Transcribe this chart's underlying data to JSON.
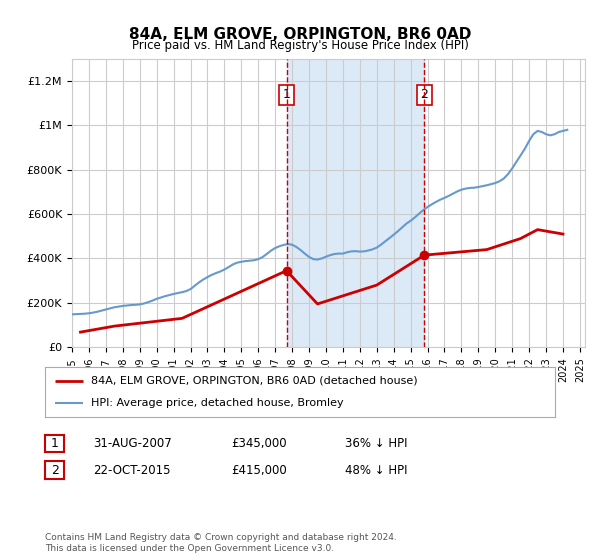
{
  "title": "84A, ELM GROVE, ORPINGTON, BR6 0AD",
  "subtitle": "Price paid vs. HM Land Registry's House Price Index (HPI)",
  "ylim": [
    0,
    1300000
  ],
  "yticks": [
    0,
    200000,
    400000,
    600000,
    800000,
    1000000,
    1200000
  ],
  "ytick_labels": [
    "£0",
    "£200K",
    "£400K",
    "£600K",
    "£800K",
    "£1M",
    "£1.2M"
  ],
  "bg_color": "#ffffff",
  "plot_bg_color": "#ffffff",
  "shaded_region_color": "#dce9f7",
  "grid_color": "#cccccc",
  "marker1": {
    "date_index": 2007.67,
    "value": 345000,
    "label": "1",
    "color": "#cc0000"
  },
  "marker2": {
    "date_index": 2015.81,
    "value": 415000,
    "label": "2",
    "color": "#cc0000"
  },
  "legend_entries": [
    {
      "label": "84A, ELM GROVE, ORPINGTON, BR6 0AD (detached house)",
      "color": "#cc0000",
      "lw": 2
    },
    {
      "label": "HPI: Average price, detached house, Bromley",
      "color": "#6699cc",
      "lw": 1.5
    }
  ],
  "table_rows": [
    {
      "num": "1",
      "date": "31-AUG-2007",
      "price": "£345,000",
      "info": "36% ↓ HPI"
    },
    {
      "num": "2",
      "date": "22-OCT-2015",
      "price": "£415,000",
      "info": "48% ↓ HPI"
    }
  ],
  "footnote": "Contains HM Land Registry data © Crown copyright and database right 2024.\nThis data is licensed under the Open Government Licence v3.0.",
  "hpi_years": [
    1995.0,
    1995.25,
    1995.5,
    1995.75,
    1996.0,
    1996.25,
    1996.5,
    1996.75,
    1997.0,
    1997.25,
    1997.5,
    1997.75,
    1998.0,
    1998.25,
    1998.5,
    1998.75,
    1999.0,
    1999.25,
    1999.5,
    1999.75,
    2000.0,
    2000.25,
    2000.5,
    2000.75,
    2001.0,
    2001.25,
    2001.5,
    2001.75,
    2002.0,
    2002.25,
    2002.5,
    2002.75,
    2003.0,
    2003.25,
    2003.5,
    2003.75,
    2004.0,
    2004.25,
    2004.5,
    2004.75,
    2005.0,
    2005.25,
    2005.5,
    2005.75,
    2006.0,
    2006.25,
    2006.5,
    2006.75,
    2007.0,
    2007.25,
    2007.5,
    2007.75,
    2008.0,
    2008.25,
    2008.5,
    2008.75,
    2009.0,
    2009.25,
    2009.5,
    2009.75,
    2010.0,
    2010.25,
    2010.5,
    2010.75,
    2011.0,
    2011.25,
    2011.5,
    2011.75,
    2012.0,
    2012.25,
    2012.5,
    2012.75,
    2013.0,
    2013.25,
    2013.5,
    2013.75,
    2014.0,
    2014.25,
    2014.5,
    2014.75,
    2015.0,
    2015.25,
    2015.5,
    2015.75,
    2016.0,
    2016.25,
    2016.5,
    2016.75,
    2017.0,
    2017.25,
    2017.5,
    2017.75,
    2018.0,
    2018.25,
    2018.5,
    2018.75,
    2019.0,
    2019.25,
    2019.5,
    2019.75,
    2020.0,
    2020.25,
    2020.5,
    2020.75,
    2021.0,
    2021.25,
    2021.5,
    2021.75,
    2022.0,
    2022.25,
    2022.5,
    2022.75,
    2023.0,
    2023.25,
    2023.5,
    2023.75,
    2024.0,
    2024.25
  ],
  "hpi_values": [
    148000,
    149000,
    150000,
    151000,
    153000,
    156000,
    160000,
    165000,
    170000,
    175000,
    180000,
    183000,
    186000,
    188000,
    190000,
    191000,
    193000,
    197000,
    203000,
    210000,
    218000,
    224000,
    230000,
    235000,
    240000,
    244000,
    248000,
    253000,
    262000,
    277000,
    292000,
    305000,
    316000,
    326000,
    334000,
    341000,
    350000,
    361000,
    373000,
    381000,
    385000,
    388000,
    390000,
    392000,
    397000,
    406000,
    420000,
    435000,
    447000,
    455000,
    461000,
    465000,
    462000,
    452000,
    438000,
    422000,
    407000,
    397000,
    395000,
    400000,
    408000,
    415000,
    420000,
    422000,
    422000,
    428000,
    432000,
    433000,
    431000,
    432000,
    436000,
    441000,
    449000,
    462000,
    477000,
    492000,
    507000,
    523000,
    540000,
    557000,
    570000,
    585000,
    602000,
    618000,
    632000,
    644000,
    655000,
    665000,
    673000,
    682000,
    692000,
    702000,
    710000,
    715000,
    718000,
    719000,
    722000,
    726000,
    730000,
    735000,
    740000,
    748000,
    760000,
    780000,
    806000,
    836000,
    865000,
    895000,
    930000,
    960000,
    975000,
    970000,
    960000,
    955000,
    960000,
    970000,
    975000,
    980000
  ],
  "price_years": [
    1995.5,
    1997.5,
    2001.5,
    2007.67,
    2009.5,
    2013.0,
    2015.81,
    2019.5,
    2021.5,
    2022.5,
    2024.0
  ],
  "price_values": [
    68000,
    95000,
    130000,
    345000,
    195000,
    280000,
    415000,
    440000,
    490000,
    530000,
    510000
  ],
  "dashed_vline1": 2007.67,
  "dashed_vline2": 2015.81,
  "shade_x1": 2007.67,
  "shade_x2": 2015.81,
  "xlim": [
    1995,
    2025.3
  ]
}
